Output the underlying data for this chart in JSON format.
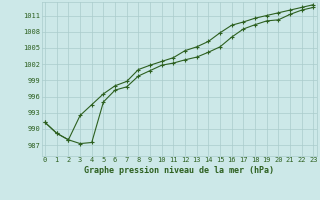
{
  "title": "Graphe pression niveau de la mer (hPa)",
  "background_color": "#cce8e8",
  "grid_color": "#aacccc",
  "line_color": "#2d6020",
  "x_ticks": [
    0,
    1,
    2,
    3,
    4,
    5,
    6,
    7,
    8,
    9,
    10,
    11,
    12,
    13,
    14,
    15,
    16,
    17,
    18,
    19,
    20,
    21,
    22,
    23
  ],
  "y_ticks": [
    987,
    990,
    993,
    996,
    999,
    1002,
    1005,
    1008,
    1011
  ],
  "ylim": [
    985.0,
    1013.5
  ],
  "xlim": [
    -0.3,
    23.3
  ],
  "series1_x": [
    0,
    1,
    2,
    3,
    4,
    5,
    6,
    7,
    8,
    9,
    10,
    11,
    12,
    13,
    14,
    15,
    16,
    17,
    18,
    19,
    20,
    21,
    22,
    23
  ],
  "series1_y": [
    991.2,
    989.2,
    988.0,
    987.3,
    987.5,
    995.0,
    997.2,
    997.8,
    999.8,
    1000.8,
    1001.8,
    1002.2,
    1002.8,
    1003.3,
    1004.2,
    1005.2,
    1007.0,
    1008.5,
    1009.3,
    1010.0,
    1010.2,
    1011.2,
    1012.0,
    1012.5
  ],
  "series2_x": [
    0,
    1,
    2,
    3,
    4,
    5,
    6,
    7,
    8,
    9,
    10,
    11,
    12,
    13,
    14,
    15,
    16,
    17,
    18,
    19,
    20,
    21,
    22,
    23
  ],
  "series2_y": [
    991.2,
    989.2,
    988.0,
    992.5,
    994.5,
    996.5,
    998.0,
    998.8,
    1001.0,
    1001.8,
    1002.5,
    1003.2,
    1004.5,
    1005.2,
    1006.2,
    1007.8,
    1009.2,
    1009.8,
    1010.5,
    1011.0,
    1011.5,
    1012.0,
    1012.5,
    1013.0
  ]
}
